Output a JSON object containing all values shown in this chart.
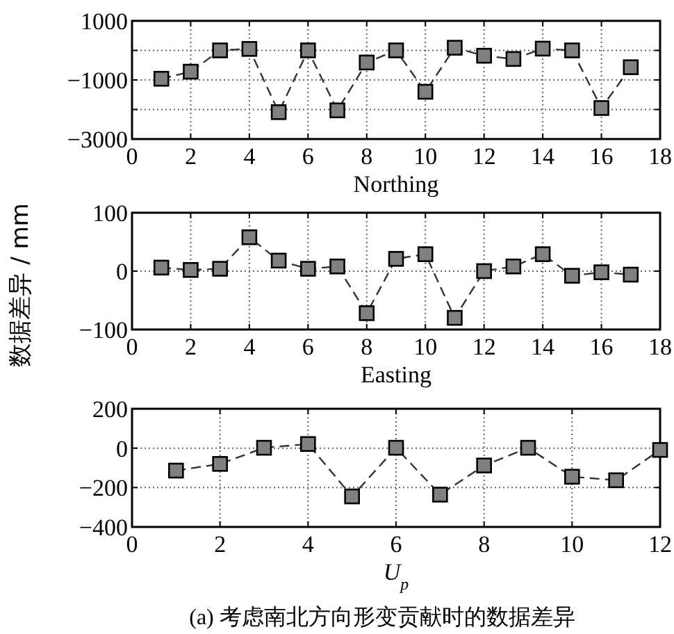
{
  "chart_data": [
    {
      "type": "line",
      "xlabel": "Northing",
      "x": [
        1,
        2,
        3,
        4,
        5,
        6,
        7,
        8,
        9,
        10,
        11,
        12,
        13,
        14,
        15,
        16,
        17
      ],
      "series": [
        {
          "color": "#808080",
          "values": [
            -960,
            -720,
            0,
            50,
            -2090,
            0,
            -2030,
            -410,
            0,
            -1400,
            90,
            -180,
            -290,
            60,
            0,
            -1950,
            -570
          ]
        }
      ],
      "xlim": [
        0,
        18
      ],
      "xticks": [
        0,
        2,
        4,
        6,
        8,
        10,
        12,
        14,
        16,
        18
      ],
      "ylim": [
        -3000,
        1000
      ],
      "yticks": [
        -3000,
        {
          "value": -2000,
          "label": null
        },
        -1000,
        {
          "value": 0,
          "label": null
        },
        1000
      ],
      "grid": true,
      "marker": "square",
      "line_style": "dashed"
    },
    {
      "type": "line",
      "xlabel": "Easting",
      "ylabel": "数据差异 / mm",
      "x": [
        1,
        2,
        3,
        4,
        5,
        6,
        7,
        8,
        9,
        10,
        11,
        12,
        13,
        14,
        15,
        16,
        17
      ],
      "series": [
        {
          "color": "#808080",
          "values": [
            6,
            2,
            4,
            58,
            18,
            4,
            8,
            -72,
            21,
            29,
            -80,
            0,
            8,
            29,
            -8,
            -2,
            -6
          ]
        }
      ],
      "xlim": [
        0,
        18
      ],
      "xticks": [
        0,
        2,
        4,
        6,
        8,
        10,
        12,
        14,
        16,
        18
      ],
      "ylim": [
        -100,
        100
      ],
      "yticks": [
        -100,
        0,
        100
      ],
      "grid": true,
      "marker": "square",
      "line_style": "dashed"
    },
    {
      "type": "line",
      "xlabel": "U$_{p}$",
      "x": [
        1,
        2,
        3,
        4,
        5,
        6,
        7,
        8,
        9,
        10,
        11,
        12
      ],
      "series": [
        {
          "color": "#808080",
          "values": [
            -114,
            -80,
            2,
            21,
            -245,
            2,
            -236,
            -88,
            2,
            -145,
            -163,
            -9
          ]
        }
      ],
      "xlim": [
        0,
        12
      ],
      "xticks": [
        0,
        2,
        4,
        6,
        8,
        10,
        12
      ],
      "ylim": [
        -400,
        200
      ],
      "yticks": [
        -400,
        -200,
        0,
        200
      ],
      "grid": true,
      "marker": "square",
      "line_style": "dashed",
      "annotations": [
        "(a) 考虑南北方向形变贡献时的数据差异"
      ]
    }
  ]
}
